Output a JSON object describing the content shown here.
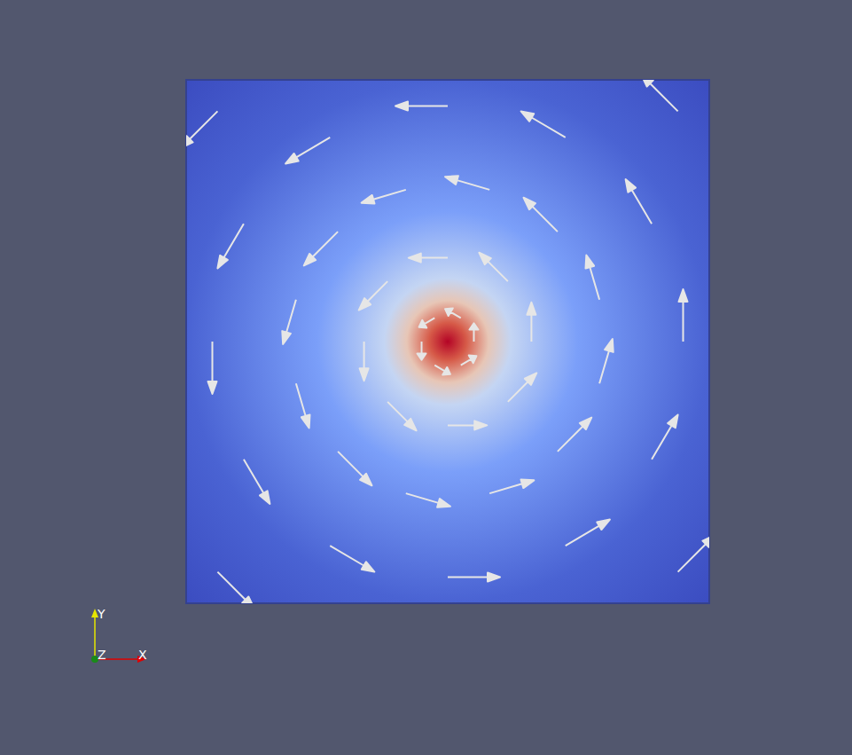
{
  "chart_data": {
    "type": "vector_field",
    "xlim": [
      -1,
      1
    ],
    "ylim": [
      -1,
      1
    ],
    "tick_labels": false,
    "grid": false,
    "color": "#e6e6e6",
    "x": [
      0.9,
      0.78,
      0.45,
      0,
      -0.45,
      -0.78,
      -0.9,
      -0.78,
      -0.45,
      0,
      0.45,
      0.78,
      0.58,
      0.42,
      0.16,
      -0.16,
      -0.42,
      -0.58,
      -0.58,
      -0.42,
      -0.16,
      0.16,
      0.42,
      0.58,
      0.32,
      0.23,
      0,
      -0.23,
      -0.32,
      -0.23,
      0,
      0.23,
      0.1,
      0.05,
      -0.05,
      -0.1,
      -0.05,
      0.05,
      0.88,
      -0.88,
      -0.88,
      0.88
    ],
    "y": [
      0,
      0.45,
      0.78,
      0.9,
      0.78,
      0.45,
      0,
      -0.45,
      -0.78,
      -0.9,
      -0.78,
      -0.45,
      0.16,
      0.42,
      0.58,
      0.58,
      0.42,
      0.16,
      -0.16,
      -0.42,
      -0.58,
      -0.58,
      -0.42,
      -0.16,
      0,
      0.23,
      0.32,
      0.23,
      0,
      -0.23,
      -0.32,
      -0.23,
      0,
      0.09,
      0.09,
      0,
      -0.09,
      -0.09,
      0.88,
      0.88,
      -0.88,
      -0.88
    ],
    "u": [
      0,
      -0.1,
      -0.17,
      -0.2,
      -0.17,
      -0.1,
      0,
      0.1,
      0.17,
      0.2,
      0.17,
      0.1,
      -0.05,
      -0.13,
      -0.17,
      -0.17,
      -0.13,
      -0.05,
      0.05,
      0.13,
      0.17,
      0.17,
      0.13,
      0.05,
      0,
      -0.11,
      -0.15,
      -0.11,
      0,
      0.11,
      0.15,
      0.11,
      0,
      -0.06,
      -0.06,
      0,
      0.06,
      0.06,
      -0.14,
      -0.14,
      0.14,
      0.14
    ],
    "v": [
      0.2,
      0.17,
      0.1,
      0,
      -0.1,
      -0.17,
      -0.2,
      -0.17,
      -0.1,
      0,
      0.1,
      0.17,
      0.17,
      0.13,
      0.05,
      -0.05,
      -0.13,
      -0.17,
      -0.17,
      -0.13,
      -0.05,
      0.05,
      0.13,
      0.17,
      0.15,
      0.11,
      0,
      -0.11,
      -0.15,
      -0.11,
      0,
      0.11,
      0.07,
      0.035,
      -0.035,
      -0.07,
      -0.035,
      0.035,
      0.14,
      -0.14,
      -0.14,
      0.14
    ]
  },
  "orientation_axes": {
    "x": "X",
    "y": "Y",
    "z": "Z"
  }
}
